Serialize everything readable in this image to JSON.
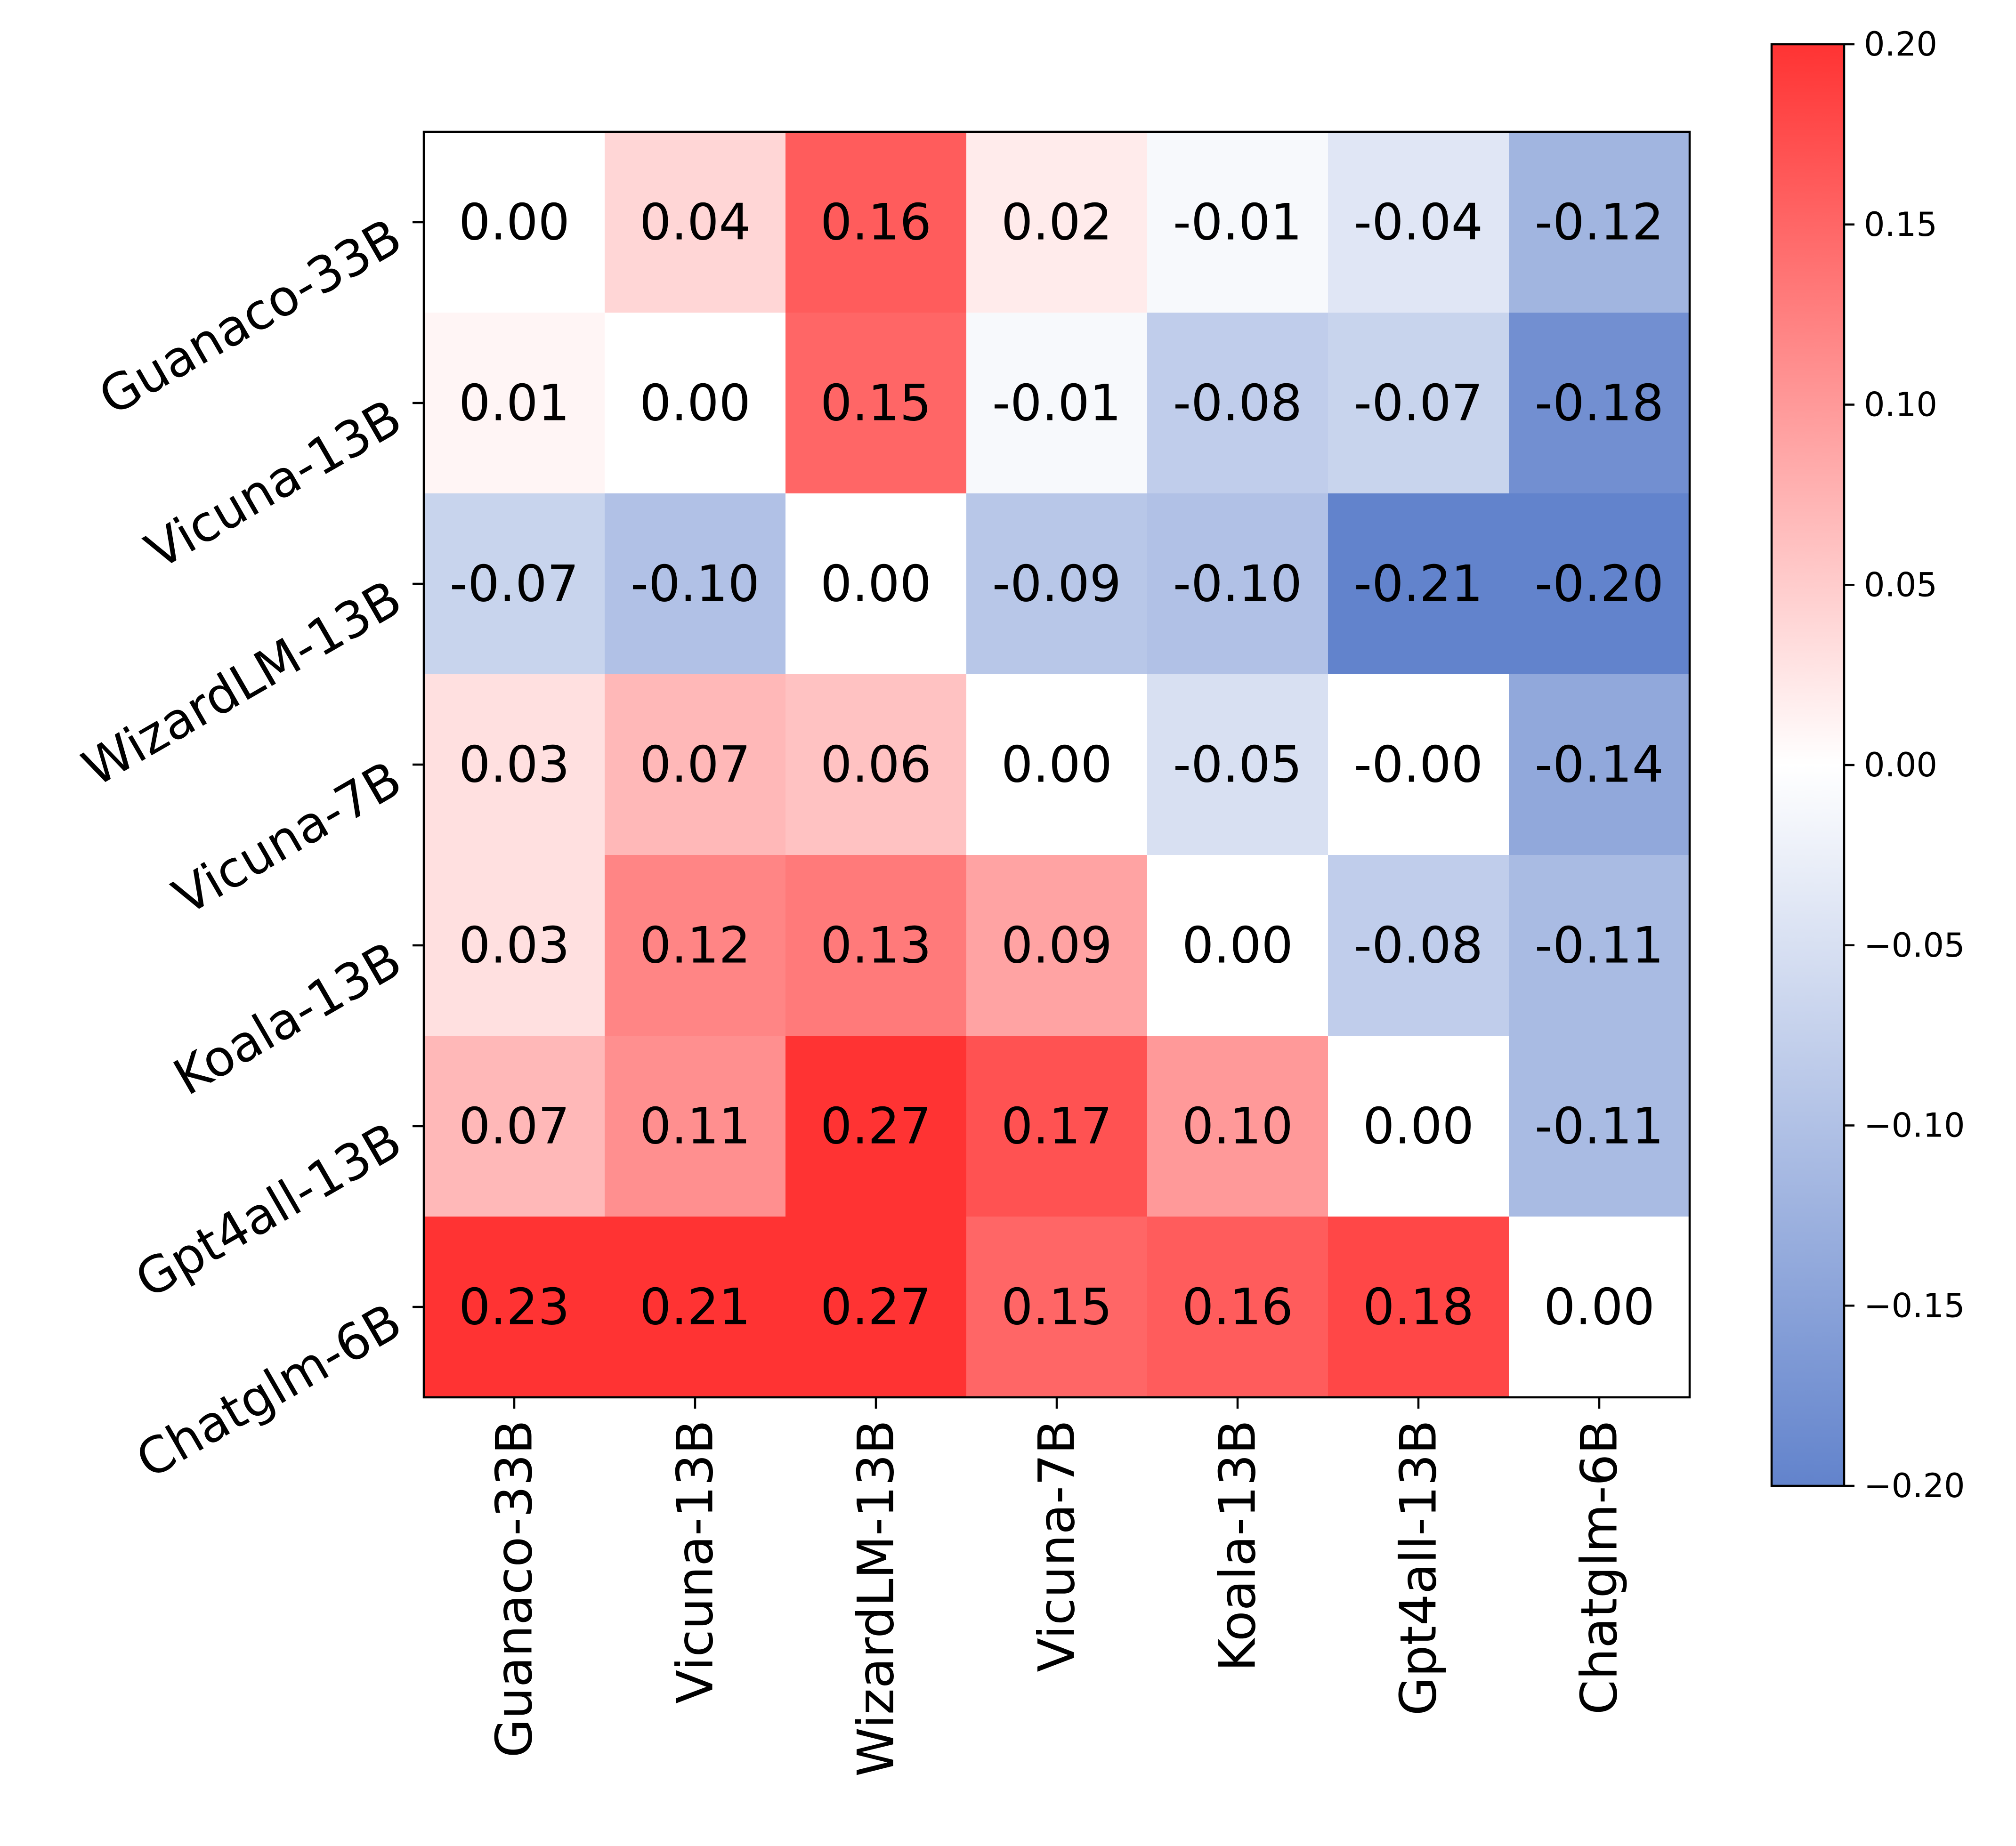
{
  "chart_data": {
    "type": "heatmap",
    "title": "",
    "xlabel": "",
    "ylabel": "",
    "x_labels": [
      "Guanaco-33B",
      "Vicuna-13B",
      "WizardLM-13B",
      "Vicuna-7B",
      "Koala-13B",
      "Gpt4all-13B",
      "Chatglm-6B"
    ],
    "y_labels": [
      "Guanaco-33B",
      "Vicuna-13B",
      "WizardLM-13B",
      "Vicuna-7B",
      "Koala-13B",
      "Gpt4all-13B",
      "Chatglm-6B"
    ],
    "values": [
      [
        0.0,
        0.04,
        0.16,
        0.02,
        -0.01,
        -0.04,
        -0.12
      ],
      [
        0.01,
        0.0,
        0.15,
        -0.01,
        -0.08,
        -0.07,
        -0.18
      ],
      [
        -0.07,
        -0.1,
        0.0,
        -0.09,
        -0.1,
        -0.21,
        -0.2
      ],
      [
        0.03,
        0.07,
        0.06,
        0.0,
        -0.05,
        -0.0,
        -0.14
      ],
      [
        0.03,
        0.12,
        0.13,
        0.09,
        0.0,
        -0.08,
        -0.11
      ],
      [
        0.07,
        0.11,
        0.27,
        0.17,
        0.1,
        0.0,
        -0.11
      ],
      [
        0.23,
        0.21,
        0.27,
        0.15,
        0.16,
        0.18,
        0.0
      ]
    ],
    "cell_labels": [
      [
        "0.00",
        "0.04",
        "0.16",
        "0.02",
        "-0.01",
        "-0.04",
        "-0.12"
      ],
      [
        "0.01",
        "0.00",
        "0.15",
        "-0.01",
        "-0.08",
        "-0.07",
        "-0.18"
      ],
      [
        "-0.07",
        "-0.10",
        "0.00",
        "-0.09",
        "-0.10",
        "-0.21",
        "-0.20"
      ],
      [
        "0.03",
        "0.07",
        "0.06",
        "0.00",
        "-0.05",
        "-0.00",
        "-0.14"
      ],
      [
        "0.03",
        "0.12",
        "0.13",
        "0.09",
        "0.00",
        "-0.08",
        "-0.11"
      ],
      [
        "0.07",
        "0.11",
        "0.27",
        "0.17",
        "0.10",
        "0.00",
        "-0.11"
      ],
      [
        "0.23",
        "0.21",
        "0.27",
        "0.15",
        "0.16",
        "0.18",
        "0.00"
      ]
    ],
    "colorbar": {
      "range": [
        -0.2,
        0.2
      ],
      "ticks": [
        0.2,
        0.15,
        0.1,
        0.05,
        0.0,
        -0.05,
        -0.1,
        -0.15,
        -0.2
      ],
      "tick_labels": [
        "0.20",
        "0.15",
        "0.10",
        "0.05",
        "0.00",
        "−0.05",
        "−0.10",
        "−0.15",
        "−0.20"
      ],
      "colors": {
        "low": "#6283cc",
        "mid": "#ffffff",
        "high": "#ff3333"
      }
    },
    "legend": "right"
  }
}
